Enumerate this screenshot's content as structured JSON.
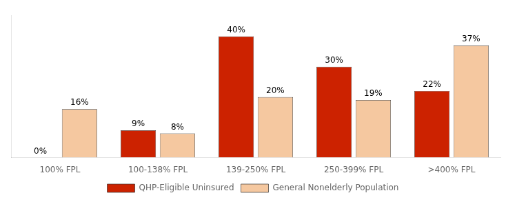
{
  "chart_data": {
    "type": "bar",
    "categories": [
      "100% FPL",
      "100-138% FPL",
      "139-250% FPL",
      "250-399% FPL",
      ">400% FPL"
    ],
    "series": [
      {
        "name": "QHP-Eligible Uninsured",
        "color": "#CC2200",
        "values": [
          0,
          9,
          40,
          30,
          22
        ],
        "value_labels": [
          "0%",
          "9%",
          "40%",
          "30%",
          "22%"
        ]
      },
      {
        "name": "General Nonelderly Population",
        "color": "#F5C8A0",
        "values": [
          16,
          8,
          20,
          19,
          37
        ],
        "value_labels": [
          "16%",
          "8%",
          "20%",
          "19%",
          "37%"
        ]
      }
    ],
    "ylim": [
      0,
      47
    ],
    "data_labels": true,
    "tick_labels": "x",
    "grid": false,
    "legend": "bottom"
  }
}
